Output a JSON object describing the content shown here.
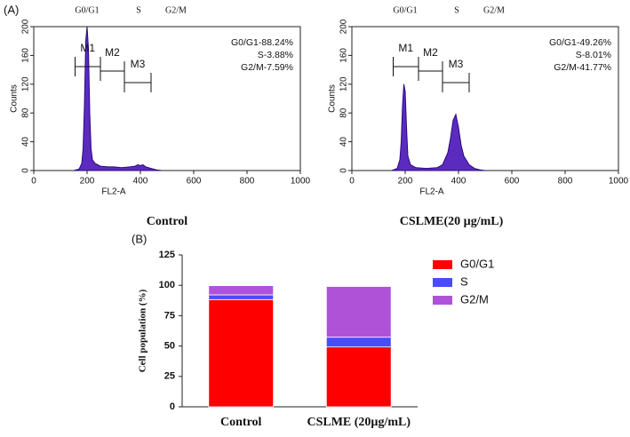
{
  "chart_data": [
    {
      "type": "area",
      "panel_label": "(A)",
      "caption": "Control",
      "xlabel": "FL2-A",
      "ylabel": "Counts",
      "phase_labels": [
        "G0/G1",
        "S",
        "G2/M"
      ],
      "annotations": [
        "G0/G1-88.24%",
        "S-3.88%",
        "G2/M-7.59%"
      ],
      "gates": [
        {
          "label": "M1",
          "range": [
            155,
            250
          ]
        },
        {
          "label": "M2",
          "range": [
            250,
            340
          ]
        },
        {
          "label": "M3",
          "range": [
            340,
            440
          ]
        }
      ],
      "x": [
        150,
        170,
        180,
        185,
        190,
        195,
        200,
        205,
        210,
        215,
        220,
        230,
        250,
        280,
        300,
        330,
        360,
        380,
        390,
        400,
        410,
        420,
        440,
        460,
        480
      ],
      "values": [
        0,
        2,
        10,
        30,
        90,
        180,
        200,
        170,
        80,
        30,
        15,
        10,
        6,
        5,
        5,
        4,
        5,
        6,
        8,
        7,
        8,
        5,
        3,
        1,
        0
      ],
      "color": "#5b2bbf",
      "xlim": [
        0,
        1000
      ],
      "ylim": [
        0,
        200
      ],
      "xticks": [
        0,
        200,
        400,
        600,
        800,
        1000
      ],
      "yticks": [
        0,
        40,
        80,
        120,
        160,
        200
      ]
    },
    {
      "type": "area",
      "caption": "CSLME(20 µg/mL)",
      "xlabel": "FL2-A",
      "ylabel": "Counts",
      "phase_labels": [
        "G0/G1",
        "S",
        "G2/M"
      ],
      "annotations": [
        "G0/G1-49.26%",
        "S-8.01%",
        "G2/M-41.77%"
      ],
      "gates": [
        {
          "label": "M1",
          "range": [
            155,
            250
          ]
        },
        {
          "label": "M2",
          "range": [
            250,
            340
          ]
        },
        {
          "label": "M3",
          "range": [
            340,
            440
          ]
        }
      ],
      "x": [
        150,
        170,
        180,
        185,
        190,
        195,
        200,
        205,
        210,
        220,
        240,
        280,
        320,
        340,
        360,
        370,
        380,
        390,
        400,
        410,
        420,
        440,
        460,
        480,
        500
      ],
      "values": [
        0,
        3,
        15,
        40,
        90,
        120,
        110,
        60,
        20,
        8,
        4,
        3,
        4,
        8,
        25,
        45,
        70,
        78,
        60,
        35,
        20,
        8,
        3,
        1,
        0
      ],
      "color": "#5b2bbf",
      "xlim": [
        0,
        1000
      ],
      "ylim": [
        0,
        200
      ],
      "xticks": [
        0,
        200,
        400,
        600,
        800,
        1000
      ],
      "yticks": [
        0,
        40,
        80,
        120,
        160,
        200
      ]
    },
    {
      "type": "stacked_bar",
      "panel_label": "(B)",
      "ylabel": "Cell population (%)",
      "categories": [
        "Control",
        "CSLME (20µg/mL)"
      ],
      "series": [
        {
          "name": "G0/G1",
          "color": "#ff0000",
          "values": [
            88.24,
            49.26
          ]
        },
        {
          "name": "S",
          "color": "#4a4aff",
          "values": [
            3.88,
            8.01
          ]
        },
        {
          "name": "G2/M",
          "color": "#b052d8",
          "values": [
            7.59,
            41.77
          ]
        }
      ],
      "ylim": [
        0,
        125
      ],
      "yticks": [
        0,
        25,
        50,
        75,
        100,
        125
      ]
    }
  ]
}
